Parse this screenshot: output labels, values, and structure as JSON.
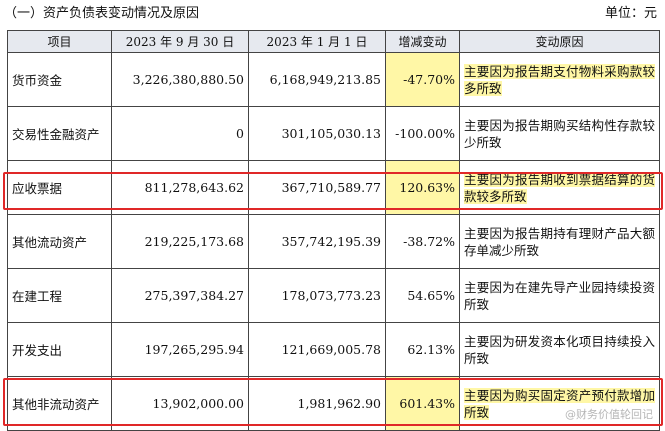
{
  "caption": {
    "title": "（一）资产负债表变动情况及原因",
    "unit": "单位：元"
  },
  "table": {
    "headers": [
      "项目",
      "2023 年 9 月 30 日",
      "2023 年 1 月 1 日",
      "增减变动",
      "变动原因"
    ],
    "rows": [
      {
        "item": "货币资金",
        "current": "3,226,380,880.50",
        "previous": "6,168,949,213.85",
        "change": "-47.70%",
        "reason": "主要因为报告期支付物料采购款较多所致",
        "highlight_change": true,
        "highlight_reason": true,
        "boxed": false
      },
      {
        "item": "交易性金融资产",
        "current": "0",
        "previous": "301,105,030.13",
        "change": "-100.00%",
        "reason": "主要因为报告期购买结构性存款较少所致",
        "highlight_change": false,
        "highlight_reason": false,
        "boxed": false
      },
      {
        "item": "应收票据",
        "current": "811,278,643.62",
        "previous": "367,710,589.77",
        "change": "120.63%",
        "reason": "主要因为报告期收到票据结算的货款较多所致",
        "highlight_change": true,
        "highlight_reason": true,
        "boxed": true
      },
      {
        "item": "其他流动资产",
        "current": "219,225,173.68",
        "previous": "357,742,195.39",
        "change": "-38.72%",
        "reason": "主要因为报告期持有理财产品大额存单减少所致",
        "highlight_change": false,
        "highlight_reason": false,
        "boxed": false
      },
      {
        "item": "在建工程",
        "current": "275,397,384.27",
        "previous": "178,073,773.23",
        "change": "54.65%",
        "reason": "主要因为在建先导产业园持续投资所致",
        "highlight_change": false,
        "highlight_reason": false,
        "boxed": false
      },
      {
        "item": "开发支出",
        "current": "197,265,295.94",
        "previous": "121,669,005.78",
        "change": "62.13%",
        "reason": "主要因为研发资本化项目持续投入所致",
        "highlight_change": false,
        "highlight_reason": false,
        "boxed": false
      },
      {
        "item": "其他非流动资产",
        "current": "13,902,000.00",
        "previous": "1,981,962.90",
        "change": "601.43%",
        "reason": "主要因为购买固定资产预付款增加所致",
        "highlight_change": true,
        "highlight_reason": true,
        "boxed": true
      }
    ]
  },
  "watermark": "@财务价值轮回记",
  "colors": {
    "header_bg": "#e6e9ef",
    "highlight": "#fff7a6",
    "box_border": "#e02828"
  }
}
